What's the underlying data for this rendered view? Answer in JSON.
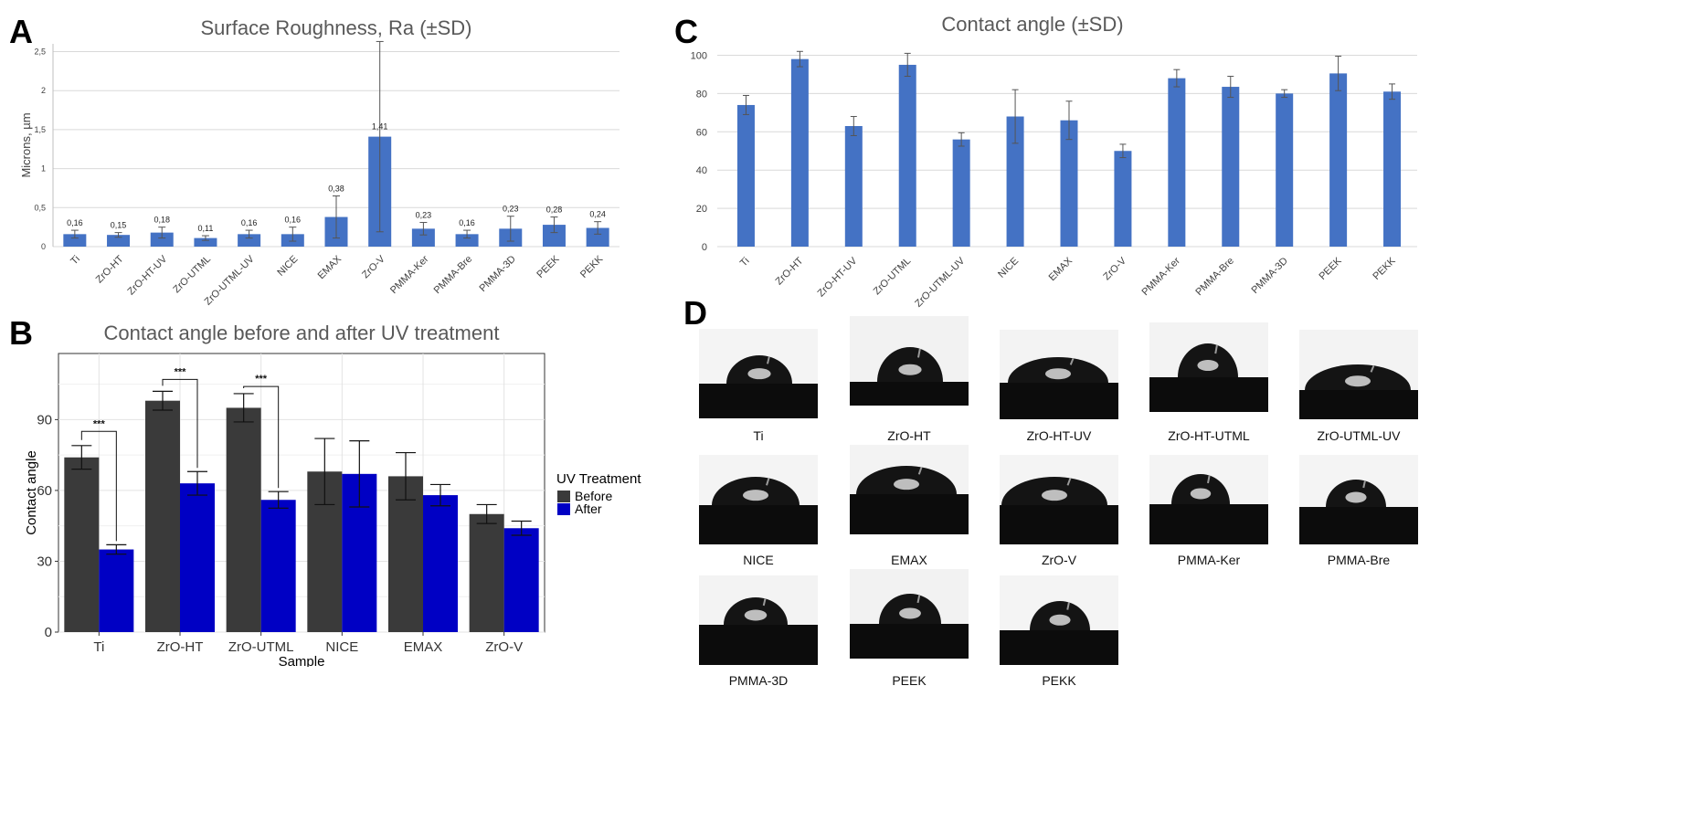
{
  "colors": {
    "bar_blue": "#4472c4",
    "before_dark": "#3a3a3a",
    "after_blue": "#0000c4"
  },
  "panels": {
    "a": "A",
    "b": "B",
    "c": "C",
    "d": "D"
  },
  "chart_data": [
    {
      "id": "A",
      "type": "bar",
      "title": "Surface Roughness, Ra (±SD)",
      "ylabel": "Microns, µm",
      "xlabel": "",
      "ylim": [
        0,
        2.6
      ],
      "yticks": [
        "0",
        "0,5",
        "1",
        "1,5",
        "2",
        "2,5"
      ],
      "grid": true,
      "categories": [
        "Ti",
        "ZrO-HT",
        "ZrO-HT-UV",
        "ZrO-UTML",
        "ZrO-UTML-UV",
        "NICE",
        "EMAX",
        "ZrO-V",
        "PMMA-Ker",
        "PMMA-Bre",
        "PMMA-3D",
        "PEEK",
        "PEKK"
      ],
      "values": [
        0.16,
        0.15,
        0.18,
        0.11,
        0.16,
        0.16,
        0.38,
        1.41,
        0.23,
        0.16,
        0.23,
        0.28,
        0.24
      ],
      "errors": [
        0.05,
        0.03,
        0.07,
        0.03,
        0.05,
        0.09,
        0.27,
        1.22,
        0.08,
        0.05,
        0.16,
        0.1,
        0.08
      ],
      "data_labels": [
        "0,16",
        "0,15",
        "0,18",
        "0,11",
        "0,16",
        "0,16",
        "0,38",
        "1,41",
        "0,23",
        "0,16",
        "0,23",
        "0,28",
        "0,24"
      ]
    },
    {
      "id": "B",
      "type": "bar",
      "title": "Contact angle before and after UV treatment",
      "xlabel": "Sample",
      "ylabel": "Contact angle",
      "ylim": [
        0,
        118
      ],
      "yticks": [
        "0",
        "30",
        "60",
        "90"
      ],
      "grid": true,
      "legend_title": "UV Treatment",
      "legend_position": "right",
      "categories": [
        "Ti",
        "ZrO-HT",
        "ZrO-UTML",
        "NICE",
        "EMAX",
        "ZrO-V"
      ],
      "series": [
        {
          "name": "Before",
          "values": [
            74,
            98,
            95,
            68,
            66,
            50
          ],
          "errors": [
            5,
            4,
            6,
            14,
            10,
            4
          ]
        },
        {
          "name": "After",
          "values": [
            35,
            63,
            56,
            67,
            58,
            44
          ],
          "errors": [
            2,
            5,
            3.5,
            14,
            4.5,
            3
          ]
        }
      ],
      "significance": [
        {
          "category": "Ti",
          "label": "***"
        },
        {
          "category": "ZrO-HT",
          "label": "***"
        },
        {
          "category": "ZrO-UTML",
          "label": "***"
        }
      ]
    },
    {
      "id": "C",
      "type": "bar",
      "title": "Contact angle (±SD)",
      "xlabel": "",
      "ylabel": "",
      "ylim": [
        0,
        105
      ],
      "yticks": [
        "0",
        "20",
        "40",
        "60",
        "80",
        "100"
      ],
      "grid": true,
      "categories": [
        "Ti",
        "ZrO-HT",
        "ZrO-HT-UV",
        "ZrO-UTML",
        "ZrO-UTML-UV",
        "NICE",
        "EMAX",
        "ZrO-V",
        "PMMA-Ker",
        "PMMA-Bre",
        "PMMA-3D",
        "PEEK",
        "PEKK"
      ],
      "values": [
        74,
        98,
        63,
        95,
        56,
        68,
        66,
        50,
        88,
        83.5,
        80,
        90.5,
        81
      ],
      "errors": [
        5,
        4,
        5,
        6,
        3.5,
        14,
        10,
        3.5,
        4.5,
        5.5,
        2,
        9,
        4
      ]
    }
  ],
  "droplets": [
    {
      "label": "Ti"
    },
    {
      "label": "ZrO-HT"
    },
    {
      "label": "ZrO-HT-UV"
    },
    {
      "label": "ZrO-HT-UTML"
    },
    {
      "label": "ZrO-UTML-UV"
    },
    {
      "label": "NICE"
    },
    {
      "label": "EMAX"
    },
    {
      "label": "ZrO-V"
    },
    {
      "label": "PMMA-Ker"
    },
    {
      "label": "PMMA-Bre"
    },
    {
      "label": "PMMA-3D"
    },
    {
      "label": "PEEK"
    },
    {
      "label": "PEKK"
    }
  ]
}
